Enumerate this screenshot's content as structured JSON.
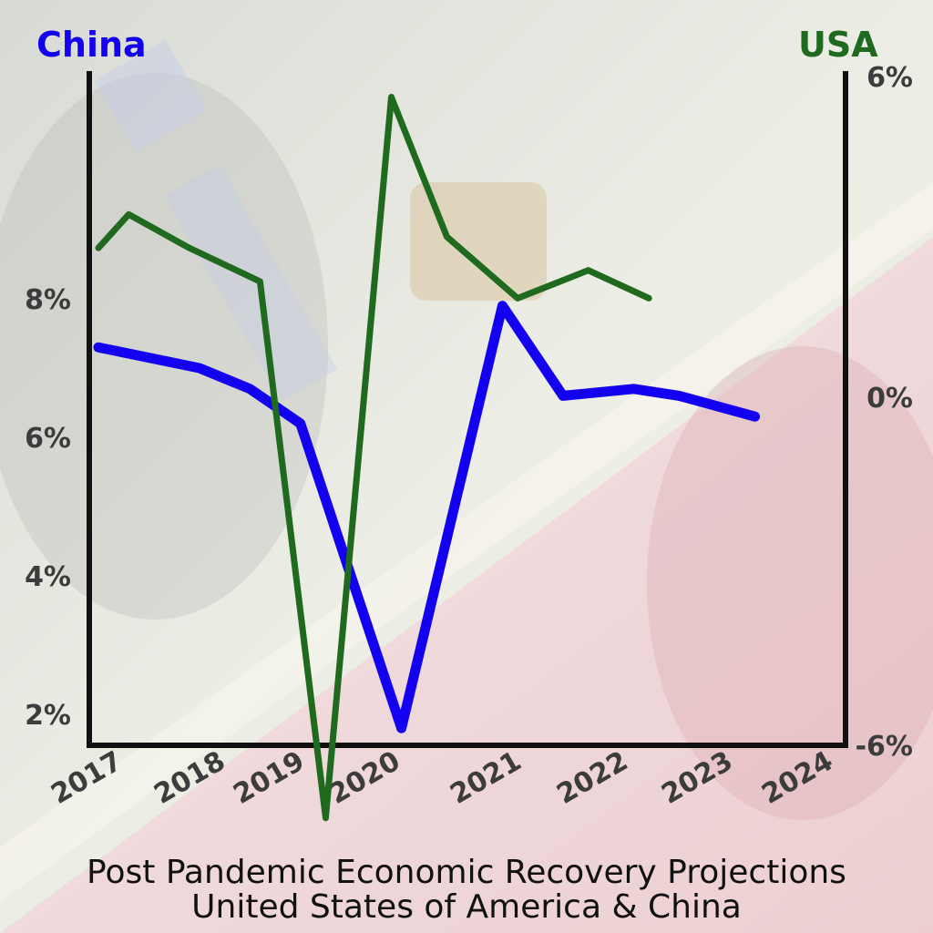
{
  "title": "Post Pandemic Economic Recovery Projections",
  "subtitle": "United States of America & China",
  "colors": {
    "china": "#1400f0",
    "usa": "#1f6a1f",
    "axis": "#111111",
    "tick_text": "#3c3c3c"
  },
  "chart_data": {
    "type": "line",
    "title": "Post Pandemic Economic Recovery Projections",
    "subtitle": "United States of America & China",
    "x_label_ticks": [
      "2017",
      "2018",
      "2019",
      "2020",
      "2021",
      "2022",
      "2023",
      "2024"
    ],
    "series": [
      {
        "name": "China",
        "axis": "left",
        "color": "#1400f0",
        "x": [
          2017.0,
          2018.0,
          2018.5,
          2019.0,
          2020.0,
          2021.0,
          2021.6,
          2022.3,
          2022.75,
          2023.5
        ],
        "values": [
          7.3,
          7.0,
          6.7,
          6.2,
          1.8,
          7.9,
          6.6,
          6.7,
          6.6,
          6.3
        ]
      },
      {
        "name": "USA",
        "axis": "right",
        "color": "#1f6a1f",
        "x": [
          2017.0,
          2017.3,
          2017.9,
          2018.6,
          2019.25,
          2019.9,
          2020.45,
          2021.15,
          2021.85,
          2022.45
        ],
        "values": [
          2.9,
          3.5,
          2.9,
          2.3,
          -7.3,
          5.6,
          3.1,
          2.0,
          2.5,
          2.0
        ]
      }
    ],
    "y_left": {
      "ticks": [
        "8%",
        "6%",
        "4%",
        "2%"
      ],
      "tick_values": [
        8,
        6,
        4,
        2
      ],
      "range": [
        1,
        12
      ]
    },
    "y_right": {
      "ticks": [
        "6%",
        "0%",
        "-6%"
      ],
      "tick_values": [
        6,
        0,
        -6
      ],
      "range": [
        -6,
        6
      ]
    },
    "grid": false
  }
}
